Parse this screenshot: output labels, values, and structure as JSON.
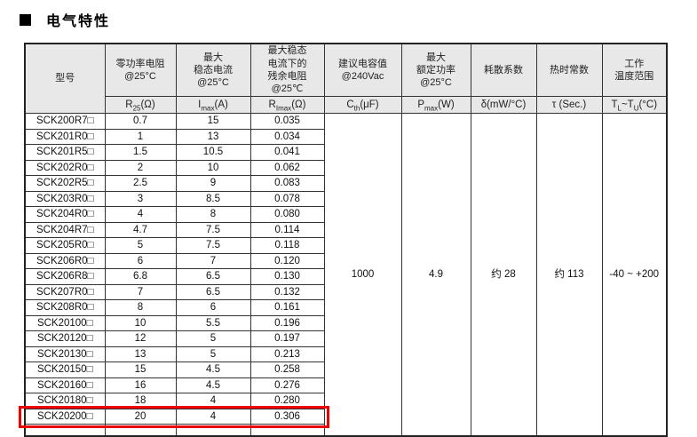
{
  "section": {
    "title": "电气特性"
  },
  "colors": {
    "header_bg": "#e8e8e8",
    "border": "#333333",
    "highlight_red": "#ee0000"
  },
  "table": {
    "columns": [
      {
        "id": "model",
        "header_lines": [
          "型号"
        ],
        "unit": null
      },
      {
        "id": "r25",
        "header_lines": [
          "零功率电阻",
          "@25°C"
        ],
        "unit": [
          {
            "t": "R"
          },
          {
            "s": "25"
          },
          {
            "t": "(Ω)"
          }
        ]
      },
      {
        "id": "imax",
        "header_lines": [
          "最大",
          "稳态电流",
          "@25°C"
        ],
        "unit": [
          {
            "t": "I"
          },
          {
            "s": "max"
          },
          {
            "t": "(A)"
          }
        ]
      },
      {
        "id": "rimax",
        "header_lines": [
          "最大稳态",
          "电流下的",
          "残余电阻",
          "@25℃"
        ],
        "unit": [
          {
            "t": "R"
          },
          {
            "s": "Imax"
          },
          {
            "t": "(Ω)"
          }
        ]
      },
      {
        "id": "cth",
        "header_lines": [
          "建议电容值",
          "@240Vac"
        ],
        "unit": [
          {
            "t": "C"
          },
          {
            "s": "th"
          },
          {
            "t": "(μF)"
          }
        ]
      },
      {
        "id": "pmax",
        "header_lines": [
          "最大",
          "额定功率",
          "@25°C"
        ],
        "unit": [
          {
            "t": "P"
          },
          {
            "s": "max"
          },
          {
            "t": "(W)"
          }
        ]
      },
      {
        "id": "delta",
        "header_lines": [
          "耗散系数"
        ],
        "unit": [
          {
            "t": "δ(mW/°C)"
          }
        ]
      },
      {
        "id": "tau",
        "header_lines": [
          "热时常数"
        ],
        "unit": [
          {
            "t": "τ (Sec.)"
          }
        ]
      },
      {
        "id": "trange",
        "header_lines": [
          "工作",
          "温度范围"
        ],
        "unit": [
          {
            "t": "T"
          },
          {
            "s": "L"
          },
          {
            "t": "~T"
          },
          {
            "s": "U"
          },
          {
            "t": "(°C)"
          }
        ]
      }
    ],
    "rows": [
      {
        "model": "SCK200R7□",
        "r25": "0.7",
        "imax": "15",
        "rimax": "0.035"
      },
      {
        "model": "SCK201R0□",
        "r25": "1",
        "imax": "13",
        "rimax": "0.034"
      },
      {
        "model": "SCK201R5□",
        "r25": "1.5",
        "imax": "10.5",
        "rimax": "0.041"
      },
      {
        "model": "SCK202R0□",
        "r25": "2",
        "imax": "10",
        "rimax": "0.062"
      },
      {
        "model": "SCK202R5□",
        "r25": "2.5",
        "imax": "9",
        "rimax": "0.083"
      },
      {
        "model": "SCK203R0□",
        "r25": "3",
        "imax": "8.5",
        "rimax": "0.078"
      },
      {
        "model": "SCK204R0□",
        "r25": "4",
        "imax": "8",
        "rimax": "0.080"
      },
      {
        "model": "SCK204R7□",
        "r25": "4.7",
        "imax": "7.5",
        "rimax": "0.114"
      },
      {
        "model": "SCK205R0□",
        "r25": "5",
        "imax": "7.5",
        "rimax": "0.118"
      },
      {
        "model": "SCK206R0□",
        "r25": "6",
        "imax": "7",
        "rimax": "0.120"
      },
      {
        "model": "SCK206R8□",
        "r25": "6.8",
        "imax": "6.5",
        "rimax": "0.130"
      },
      {
        "model": "SCK207R0□",
        "r25": "7",
        "imax": "6.5",
        "rimax": "0.132"
      },
      {
        "model": "SCK208R0□",
        "r25": "8",
        "imax": "6",
        "rimax": "0.161"
      },
      {
        "model": "SCK20100□",
        "r25": "10",
        "imax": "5.5",
        "rimax": "0.196"
      },
      {
        "model": "SCK20120□",
        "r25": "12",
        "imax": "5",
        "rimax": "0.197"
      },
      {
        "model": "SCK20130□",
        "r25": "13",
        "imax": "5",
        "rimax": "0.213"
      },
      {
        "model": "SCK20150□",
        "r25": "15",
        "imax": "4.5",
        "rimax": "0.258"
      },
      {
        "model": "SCK20160□",
        "r25": "16",
        "imax": "4.5",
        "rimax": "0.276"
      },
      {
        "model": "SCK20180□",
        "r25": "18",
        "imax": "4",
        "rimax": "0.280"
      },
      {
        "model": "SCK20200□",
        "r25": "20",
        "imax": "4",
        "rimax": "0.306"
      }
    ],
    "merged": {
      "cth": "1000",
      "pmax": "4.9",
      "delta": "约 28",
      "tau": "约 113",
      "trange": "-40 ~ +200"
    },
    "highlighted_model": "SCK20200□"
  }
}
